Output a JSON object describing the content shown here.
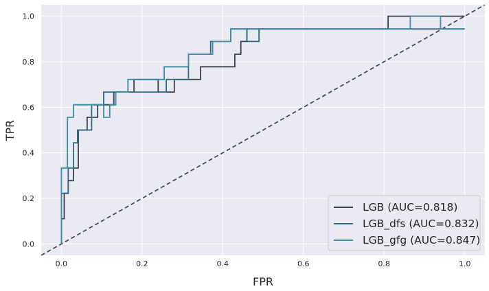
{
  "chart_data": {
    "type": "line",
    "title": "",
    "xlabel": "FPR",
    "ylabel": "TPR",
    "xlim": [
      -0.05,
      1.05
    ],
    "ylim": [
      -0.05,
      1.05
    ],
    "xticks": [
      0.0,
      0.2,
      0.4,
      0.6,
      0.8,
      1.0
    ],
    "yticks": [
      0.0,
      0.2,
      0.4,
      0.6,
      0.8,
      1.0
    ],
    "xtick_labels": [
      "0.0",
      "0.2",
      "0.4",
      "0.6",
      "0.8",
      "1.0"
    ],
    "ytick_labels": [
      "0.0",
      "0.2",
      "0.4",
      "0.6",
      "0.8",
      "1.0"
    ],
    "grid": true,
    "legend_position": "bottom-right",
    "diagonal": {
      "x": [
        -0.05,
        1.05
      ],
      "y": [
        -0.05,
        1.05
      ],
      "style": "dashed",
      "color": "#3f4e5c"
    },
    "series": [
      {
        "name": "LGB (AUC=0.818)",
        "color": "#3a3f4b",
        "x": [
          0,
          0,
          0.007,
          0.007,
          0.017,
          0.017,
          0.03,
          0.03,
          0.042,
          0.042,
          0.064,
          0.064,
          0.09,
          0.09,
          0.13,
          0.13,
          0.18,
          0.18,
          0.24,
          0.24,
          0.28,
          0.28,
          0.345,
          0.345,
          0.43,
          0.43,
          0.445,
          0.445,
          0.46,
          0.46,
          0.81,
          0.81,
          1.0
        ],
        "y": [
          0,
          0.111,
          0.111,
          0.222,
          0.222,
          0.278,
          0.278,
          0.333,
          0.333,
          0.5,
          0.5,
          0.556,
          0.556,
          0.611,
          0.611,
          0.667,
          0.667,
          0.722,
          0.722,
          0.667,
          0.667,
          0.722,
          0.722,
          0.778,
          0.778,
          0.833,
          0.833,
          0.889,
          0.889,
          0.944,
          0.944,
          1.0,
          1.0
        ]
      },
      {
        "name": "LGB_dfs (AUC=0.832)",
        "color": "#2f6a80",
        "x": [
          0,
          0,
          0.017,
          0.017,
          0.03,
          0.03,
          0.04,
          0.04,
          0.075,
          0.075,
          0.105,
          0.105,
          0.135,
          0.135,
          0.165,
          0.165,
          0.26,
          0.26,
          0.315,
          0.315,
          0.37,
          0.37,
          0.39,
          0.39,
          0.42,
          0.42,
          0.46,
          0.46,
          0.49,
          0.49,
          1.0
        ],
        "y": [
          0,
          0.222,
          0.222,
          0.333,
          0.333,
          0.444,
          0.444,
          0.5,
          0.5,
          0.611,
          0.611,
          0.667,
          0.667,
          0.667,
          0.667,
          0.667,
          0.667,
          0.722,
          0.722,
          0.833,
          0.833,
          0.889,
          0.889,
          0.889,
          0.889,
          0.944,
          0.944,
          0.889,
          0.889,
          0.944,
          0.944
        ]
      },
      {
        "name": "LGB_gfg (AUC=0.847)",
        "color": "#3d8aa5",
        "x": [
          0,
          0,
          0.015,
          0.015,
          0.03,
          0.03,
          0.06,
          0.06,
          0.105,
          0.105,
          0.12,
          0.12,
          0.135,
          0.135,
          0.165,
          0.165,
          0.255,
          0.255,
          0.28,
          0.28,
          0.315,
          0.315,
          0.375,
          0.375,
          0.42,
          0.42,
          0.49,
          0.49,
          0.865,
          0.865,
          0.94,
          0.94,
          1.0
        ],
        "y": [
          0,
          0.333,
          0.333,
          0.556,
          0.556,
          0.611,
          0.611,
          0.611,
          0.611,
          0.556,
          0.556,
          0.611,
          0.611,
          0.667,
          0.667,
          0.722,
          0.722,
          0.778,
          0.778,
          0.778,
          0.778,
          0.833,
          0.833,
          0.889,
          0.889,
          0.944,
          0.944,
          0.944,
          0.944,
          1.0,
          1.0,
          0.944,
          0.944
        ]
      }
    ]
  }
}
